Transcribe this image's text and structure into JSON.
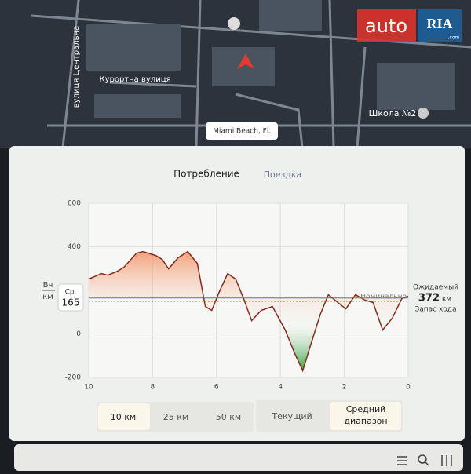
{
  "map": {
    "street_vertical": "вулиця Центральна",
    "street": "Курортна вулиця",
    "location": "Miami Beach, FL",
    "poi": "Школа №2"
  },
  "watermark": {
    "brand": "auto",
    "badge": "RIA",
    "domain": ".com"
  },
  "tabs": [
    "Потребление",
    "Поездка"
  ],
  "chart_data": {
    "type": "line",
    "y_unit_top": "Вч",
    "y_unit_bottom": "км",
    "x": [
      10,
      9.6,
      9.4,
      9.1,
      8.9,
      8.5,
      8.3,
      7.9,
      7.7,
      7.5,
      7.2,
      6.9,
      6.6,
      6.35,
      6.15,
      5.9,
      5.65,
      5.4,
      5.15,
      4.9,
      4.6,
      4.25,
      3.85,
      3.55,
      3.3,
      3.1,
      2.75,
      2.5,
      2.2,
      1.95,
      1.65,
      1.35,
      1.1,
      0.8,
      0.5,
      0.2,
      0
    ],
    "series": [
      {
        "color": "#8b2a1a",
        "values": [
          252,
          277,
          270,
          288,
          306,
          371,
          378,
          360,
          342,
          299,
          350,
          378,
          324,
          126,
          108,
          198,
          277,
          252,
          162,
          61,
          108,
          126,
          18,
          -90,
          -169,
          -72,
          90,
          180,
          144,
          115,
          180,
          155,
          144,
          18,
          72,
          162,
          173
        ]
      }
    ],
    "xlim": [
      10,
      0
    ],
    "ylim": [
      -200,
      600
    ],
    "xticks": [
      10,
      8,
      6,
      4,
      2,
      0
    ],
    "yticks": [
      600,
      400,
      0,
      -200
    ],
    "average_label": "Ср.",
    "average": 165,
    "nominal_label": "Номинально",
    "nominal": 150,
    "expected_label": "Ожидаемый",
    "expected_range": 372,
    "expected_unit": "км",
    "expected_caption": "Запас хода"
  },
  "range_buttons": [
    "10 км",
    "25 км",
    "50 км"
  ],
  "mode_buttons": [
    "Текущий",
    [
      "Средний",
      "диапазон"
    ]
  ]
}
